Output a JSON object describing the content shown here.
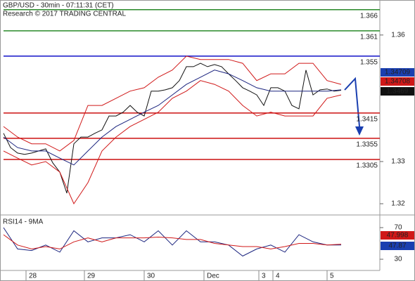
{
  "chart_data": [
    {
      "type": "line",
      "title": "GBP/USD - 30min - 07:11:31 (CET)",
      "subtitle": "Research © 2017 TRADING CENTRAL",
      "xlim": [
        0,
        540
      ],
      "ylim": [
        1.3175,
        1.3683
      ],
      "yticks": [
        1.32,
        1.33,
        1.36
      ],
      "levels": [
        {
          "value": 1.366,
          "color": "#2a8a2a"
        },
        {
          "value": 1.361,
          "color": "#2a8a2a"
        },
        {
          "value": 1.355,
          "color": "#1010c8"
        },
        {
          "value": 1.3415,
          "color": "#cc1111"
        },
        {
          "value": 1.3355,
          "color": "#cc1111"
        },
        {
          "value": 1.3305,
          "color": "#cc1111"
        }
      ],
      "price_labels": [
        {
          "label": "1.34709",
          "color": "#1a3fb0"
        },
        {
          "label": "1.34708",
          "color": "#d01818"
        },
        {
          "label": "1.3469",
          "color": "#111111"
        }
      ],
      "series": [
        {
          "color": "#111111",
          "x": [
            5,
            15,
            25,
            35,
            45,
            55,
            65,
            75,
            85,
            95,
            105,
            115,
            125,
            135,
            145,
            155,
            165,
            175,
            185,
            195,
            205,
            215,
            225,
            235,
            245,
            255,
            265,
            275,
            285,
            295,
            305,
            315,
            325,
            335,
            345,
            355,
            365,
            375,
            385,
            395,
            405,
            415,
            425,
            435,
            445,
            455,
            465,
            475,
            485
          ],
          "values": [
            1.3367,
            1.3333,
            1.332,
            1.3317,
            1.332,
            1.3325,
            1.333,
            1.3297,
            1.3275,
            1.3225,
            1.3342,
            1.3358,
            1.3358,
            1.3367,
            1.3375,
            1.3408,
            1.3408,
            1.3417,
            1.3433,
            1.3417,
            1.3408,
            1.3467,
            1.3467,
            1.347,
            1.3475,
            1.3492,
            1.3525,
            1.3525,
            1.3533,
            1.3525,
            1.353,
            1.3525,
            1.3508,
            1.3492,
            1.3475,
            1.3467,
            1.3458,
            1.3433,
            1.3475,
            1.3475,
            1.3467,
            1.3433,
            1.3425,
            1.3517,
            1.3458,
            1.347,
            1.3472,
            1.3467,
            1.3469
          ]
        },
        {
          "color": "#d01818",
          "x": [
            5,
            25,
            45,
            65,
            85,
            105,
            125,
            145,
            165,
            185,
            205,
            225,
            245,
            265,
            285,
            305,
            325,
            345,
            365,
            385,
            405,
            425,
            445,
            465,
            485
          ],
          "values": [
            1.3383,
            1.3358,
            1.3342,
            1.3342,
            1.3325,
            1.335,
            1.3433,
            1.3433,
            1.345,
            1.3467,
            1.3475,
            1.35,
            1.3517,
            1.355,
            1.3542,
            1.3542,
            1.3542,
            1.3533,
            1.3492,
            1.3508,
            1.3508,
            1.3533,
            1.3533,
            1.3492,
            1.3483
          ]
        },
        {
          "color": "#d01818",
          "x": [
            5,
            25,
            45,
            65,
            85,
            105,
            125,
            145,
            165,
            185,
            205,
            225,
            245,
            265,
            285,
            305,
            325,
            345,
            365,
            385,
            405,
            425,
            445,
            465,
            485
          ],
          "values": [
            1.3325,
            1.3308,
            1.3292,
            1.33,
            1.3275,
            1.32,
            1.325,
            1.3325,
            1.3358,
            1.3383,
            1.34,
            1.3417,
            1.345,
            1.3467,
            1.3492,
            1.3483,
            1.3467,
            1.3433,
            1.3408,
            1.3417,
            1.3408,
            1.3408,
            1.3408,
            1.345,
            1.3458
          ]
        },
        {
          "color": "#1a237e",
          "x": [
            5,
            25,
            45,
            65,
            85,
            105,
            125,
            145,
            165,
            185,
            205,
            225,
            245,
            265,
            285,
            305,
            325,
            345,
            365,
            385,
            405,
            425,
            445,
            465,
            485
          ],
          "values": [
            1.3358,
            1.3333,
            1.3325,
            1.3325,
            1.3308,
            1.3292,
            1.3325,
            1.3358,
            1.3383,
            1.34,
            1.3417,
            1.3433,
            1.3458,
            1.3483,
            1.35,
            1.3517,
            1.3508,
            1.3492,
            1.3475,
            1.3467,
            1.3467,
            1.3467,
            1.3467,
            1.3467,
            1.347
          ]
        }
      ]
    },
    {
      "type": "line",
      "title": "RSI14 - 9MA",
      "xlim": [
        0,
        540
      ],
      "ylim": [
        16.7,
        85.1
      ],
      "yticks": [
        70,
        30
      ],
      "xticks": [
        {
          "value": 37,
          "label": "28"
        },
        {
          "value": 120,
          "label": "29"
        },
        {
          "value": 205,
          "label": "30"
        },
        {
          "value": 290,
          "label": "Dec"
        },
        {
          "value": 368,
          "label": "3"
        },
        {
          "value": 388,
          "label": "4"
        },
        {
          "value": 465,
          "label": "5"
        }
      ],
      "price_labels": [
        {
          "label": "47.998",
          "color": "#d01818"
        },
        {
          "label": "47.87",
          "color": "#1a3fb0"
        }
      ],
      "series": [
        {
          "color": "#1a237e",
          "x": [
            5,
            25,
            45,
            65,
            85,
            105,
            125,
            145,
            165,
            185,
            205,
            225,
            245,
            265,
            285,
            305,
            325,
            345,
            365,
            385,
            405,
            425,
            445,
            465,
            485
          ],
          "values": [
            70,
            43,
            41,
            48,
            39,
            66,
            52,
            57,
            57,
            61,
            52,
            66,
            48,
            66,
            52,
            52,
            48,
            34,
            43,
            48,
            39,
            61,
            52,
            48,
            48
          ]
        },
        {
          "color": "#d01818",
          "x": [
            5,
            25,
            45,
            65,
            85,
            105,
            125,
            145,
            165,
            185,
            205,
            225,
            245,
            265,
            285,
            305,
            325,
            345,
            365,
            385,
            405,
            425,
            445,
            465,
            485
          ],
          "values": [
            61,
            48,
            43,
            46,
            43,
            52,
            57,
            52,
            57,
            57,
            57,
            58,
            57,
            55,
            55,
            50,
            48,
            46,
            46,
            43,
            46,
            50,
            50,
            48,
            49
          ]
        }
      ]
    }
  ]
}
